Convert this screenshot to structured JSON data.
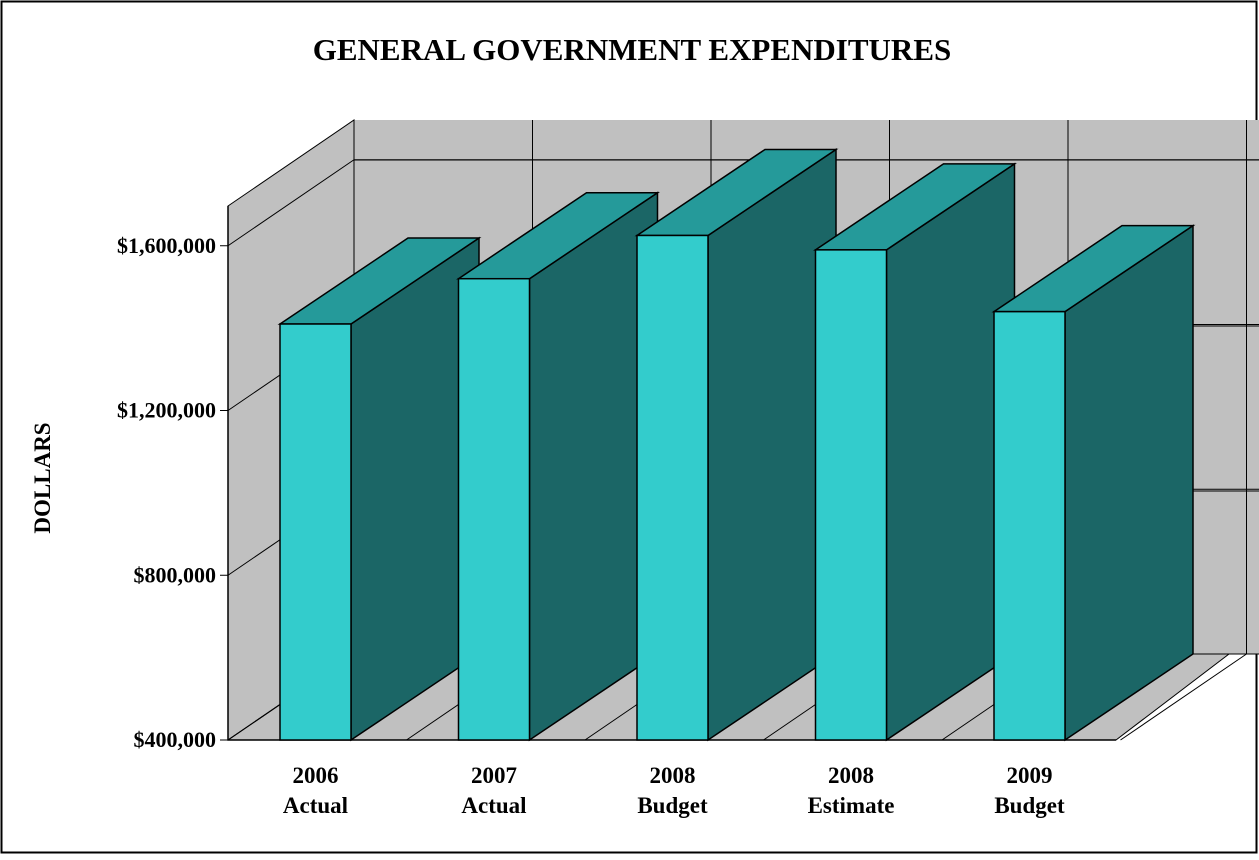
{
  "chart_data": {
    "type": "bar",
    "title": "GENERAL GOVERNMENT EXPENDITURES",
    "xlabel": "",
    "ylabel": "DOLLARS",
    "categories": [
      [
        "2006",
        "Actual"
      ],
      [
        "2007",
        "Actual"
      ],
      [
        "2008",
        "Budget"
      ],
      [
        "2008",
        "Estimate"
      ],
      [
        "2009",
        "Budget"
      ]
    ],
    "values": [
      1410000,
      1520000,
      1625000,
      1590000,
      1440000
    ],
    "yticks": [
      400000,
      800000,
      1200000,
      1600000
    ],
    "ytick_labels": [
      "$400,000",
      "$800,000",
      "$1,200,000",
      "$1,600,000"
    ],
    "ylim": [
      400000,
      2000000
    ],
    "grid": true,
    "legend": "none",
    "three_d": true,
    "colors": {
      "bar_front": "#33CCCC",
      "bar_top": "#259A9A",
      "bar_side": "#1B6666",
      "walls": "#C0C0C0",
      "grid": "#000000",
      "frame": "#000000"
    }
  }
}
